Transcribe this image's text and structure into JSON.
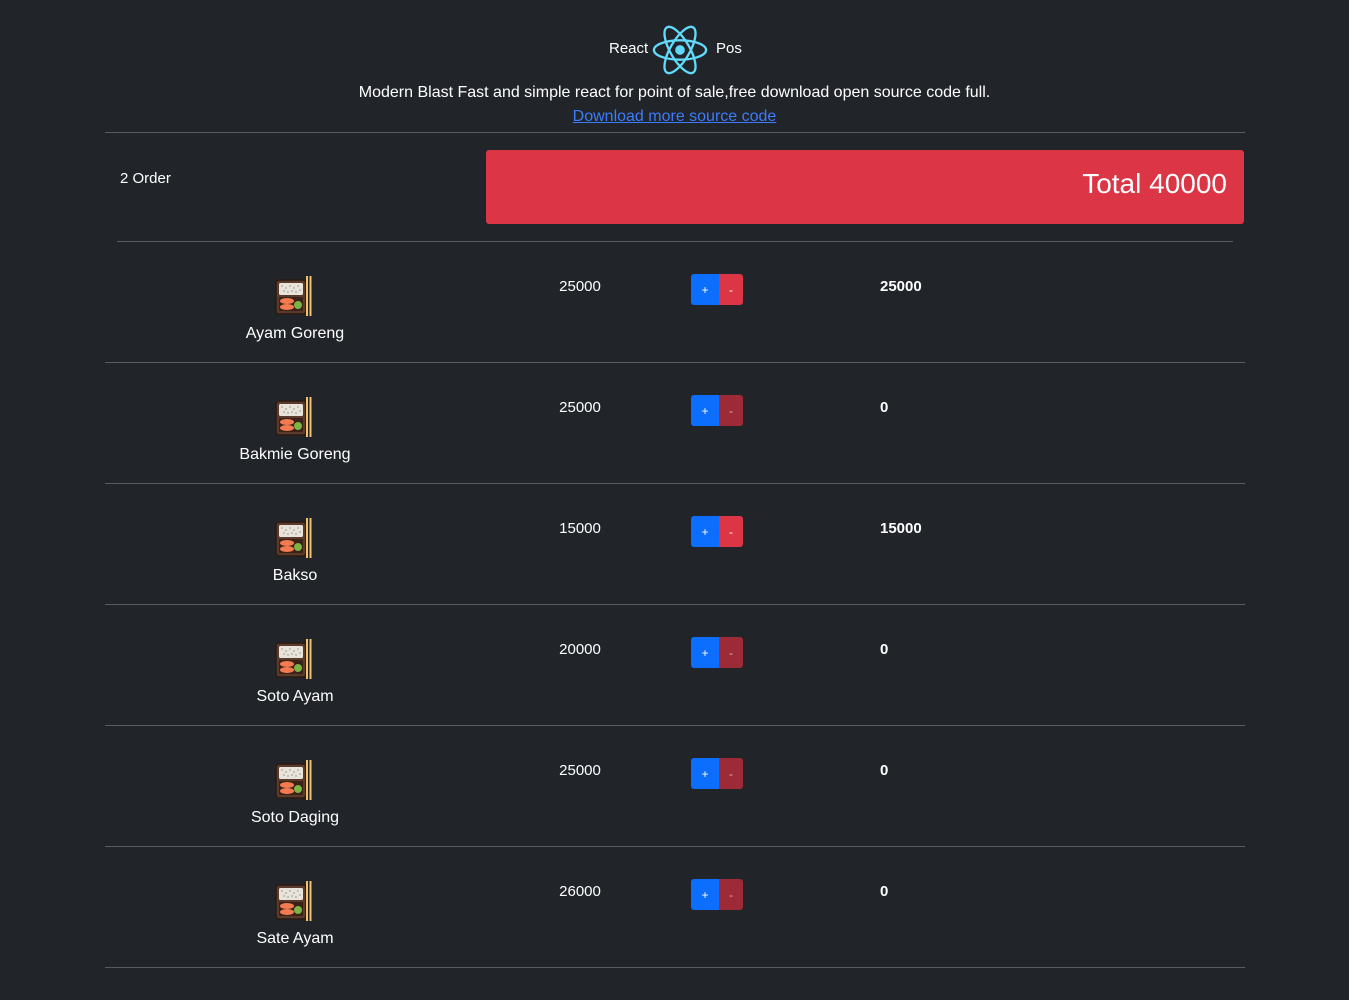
{
  "header": {
    "brand_left": "React",
    "brand_right": "Pos",
    "logo_icon": "react-atom-icon",
    "logo_color": "#61dafb",
    "tagline": "Modern Blast Fast and simple react for point of sale,free download open source code full.",
    "download_link": "Download more source code"
  },
  "summary": {
    "order_count": "2 Order",
    "total_label": "Total 40000",
    "total_color": "#dc3545"
  },
  "menu": {
    "items": [
      {
        "name": "Ayam Goreng",
        "price": "25000",
        "plus": "+",
        "minus": "-",
        "subtotal": "25000",
        "icon": "bento-box-icon"
      },
      {
        "name": "Bakmie Goreng",
        "price": "25000",
        "plus": "+",
        "minus": "-",
        "subtotal": "0",
        "icon": "bento-box-icon"
      },
      {
        "name": "Bakso",
        "price": "15000",
        "plus": "+",
        "minus": "-",
        "subtotal": "15000",
        "icon": "bento-box-icon"
      },
      {
        "name": "Soto Ayam",
        "price": "20000",
        "plus": "+",
        "minus": "-",
        "subtotal": "0",
        "icon": "bento-box-icon"
      },
      {
        "name": "Soto Daging",
        "price": "25000",
        "plus": "+",
        "minus": "-",
        "subtotal": "0",
        "icon": "bento-box-icon"
      },
      {
        "name": "Sate Ayam",
        "price": "26000",
        "plus": "+",
        "minus": "-",
        "subtotal": "0",
        "icon": "bento-box-icon"
      }
    ]
  },
  "colors": {
    "background": "#212529",
    "plus_button": "#0d6efd",
    "minus_button": "#dc3545",
    "link": "#3d7bfd"
  }
}
